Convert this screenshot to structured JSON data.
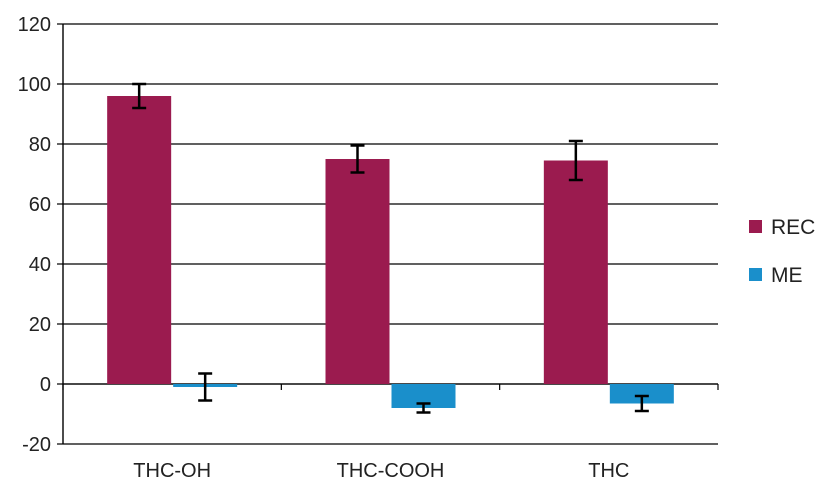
{
  "chart_data": {
    "type": "bar",
    "categories": [
      "THC-OH",
      "THC-COOH",
      "THC"
    ],
    "series": [
      {
        "name": "REC",
        "values": [
          96,
          75,
          74.5
        ],
        "error": [
          4,
          4.5,
          6.5
        ]
      },
      {
        "name": "ME",
        "values": [
          -1,
          -8,
          -6.5
        ],
        "error": [
          4.5,
          1.5,
          2.5
        ]
      }
    ],
    "ylim": [
      -20,
      120
    ],
    "yticks": [
      -20,
      0,
      20,
      40,
      60,
      80,
      100,
      120
    ],
    "title": "",
    "xlabel": "",
    "ylabel": "",
    "grid": "horizontal",
    "legend_position": "right",
    "colors": {
      "REC": "#9B1B4F",
      "ME": "#1A8FCB",
      "grid": "#000000",
      "error_bar": "#000000"
    }
  }
}
